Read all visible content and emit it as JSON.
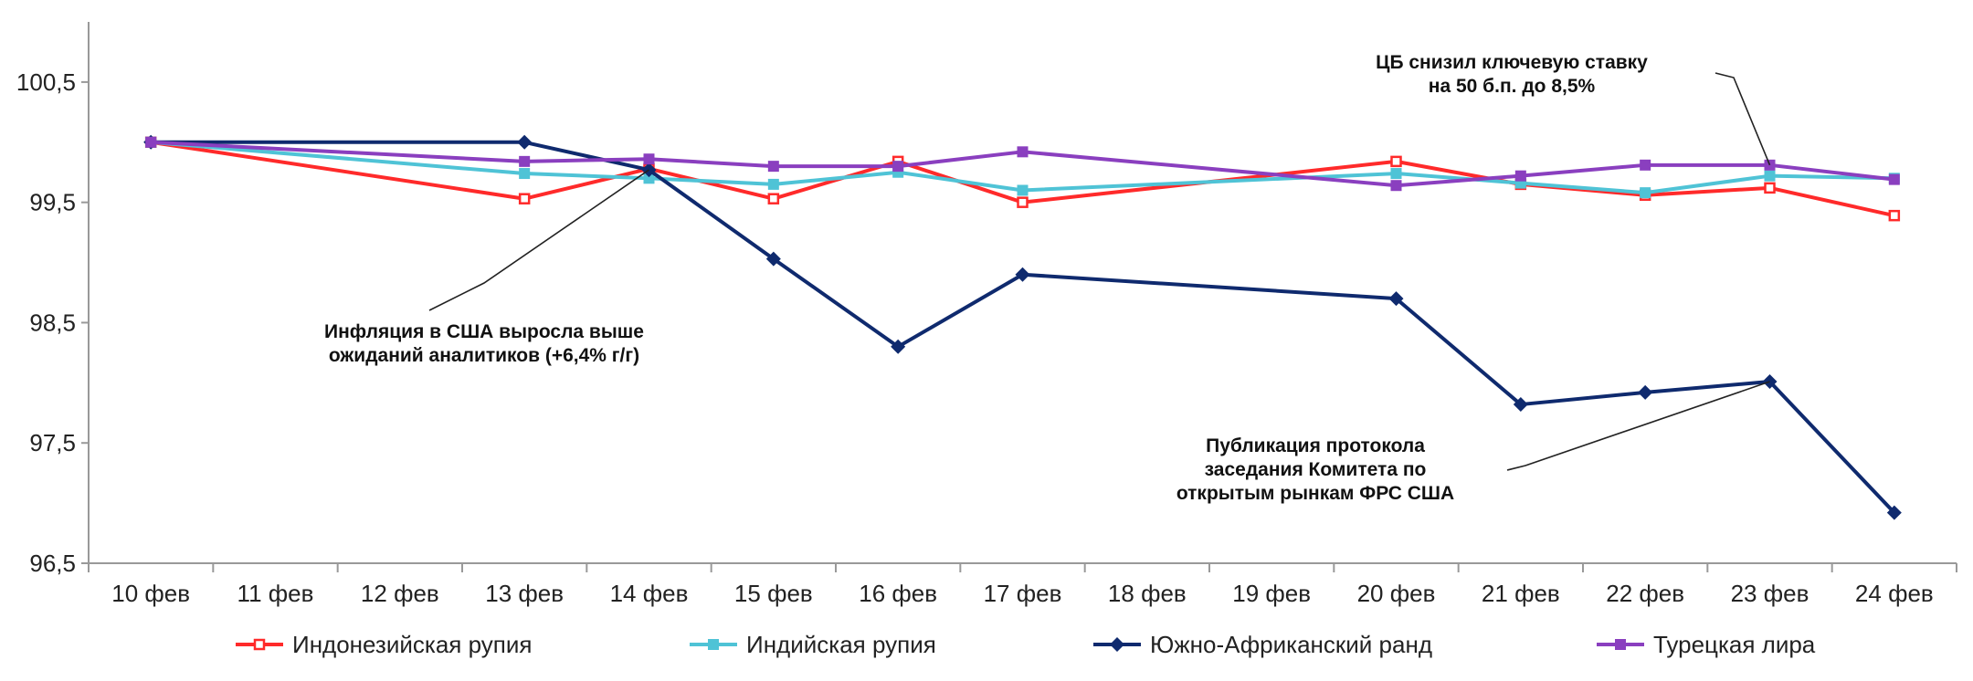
{
  "chart_data": {
    "type": "line",
    "title": "",
    "xlabel": "",
    "ylabel": "",
    "ylim": [
      96.5,
      101.0
    ],
    "yticks": [
      "96,5",
      "97,5",
      "98,5",
      "99,5",
      "100,5"
    ],
    "ytick_values": [
      96.5,
      97.5,
      98.5,
      99.5,
      100.5
    ],
    "categories": [
      "10 фев",
      "11 фев",
      "12 фев",
      "13 фев",
      "14 фев",
      "15 фев",
      "16 фев",
      "17 фев",
      "18 фев",
      "19 фев",
      "20 фев",
      "21 фев",
      "22 фев",
      "23 фев",
      "24 фев"
    ],
    "grid": false,
    "legend_position": "bottom",
    "series": [
      {
        "name": "Индонезийская рупия",
        "color": "#ff2a2a",
        "marker": "square-hollow",
        "points": [
          [
            0,
            100.0
          ],
          [
            3,
            99.53
          ],
          [
            4,
            99.78
          ],
          [
            5,
            99.53
          ],
          [
            6,
            99.84
          ],
          [
            7,
            99.5
          ],
          [
            10,
            99.84
          ],
          [
            11,
            99.65
          ],
          [
            12,
            99.56
          ],
          [
            13,
            99.62
          ],
          [
            14,
            99.39
          ]
        ]
      },
      {
        "name": "Индийская рупия",
        "color": "#4fc3d6",
        "marker": "square",
        "points": [
          [
            0,
            100.0
          ],
          [
            3,
            99.74
          ],
          [
            4,
            99.7
          ],
          [
            5,
            99.65
          ],
          [
            6,
            99.75
          ],
          [
            7,
            99.6
          ],
          [
            10,
            99.74
          ],
          [
            11,
            99.66
          ],
          [
            12,
            99.58
          ],
          [
            13,
            99.72
          ],
          [
            14,
            99.7
          ]
        ]
      },
      {
        "name": "Южно-Африканский ранд",
        "color": "#0f2a6e",
        "marker": "diamond",
        "points": [
          [
            0,
            100.0
          ],
          [
            3,
            100.0
          ],
          [
            4,
            99.77
          ],
          [
            5,
            99.03
          ],
          [
            6,
            98.3
          ],
          [
            7,
            98.9
          ],
          [
            10,
            98.7
          ],
          [
            11,
            97.82
          ],
          [
            12,
            97.92
          ],
          [
            13,
            98.01
          ],
          [
            14,
            96.92
          ]
        ]
      },
      {
        "name": "Турецкая лира",
        "color": "#8a3fbf",
        "marker": "square",
        "points": [
          [
            0,
            100.0
          ],
          [
            3,
            99.84
          ],
          [
            4,
            99.86
          ],
          [
            5,
            99.8
          ],
          [
            6,
            99.8
          ],
          [
            7,
            99.92
          ],
          [
            10,
            99.64
          ],
          [
            11,
            99.72
          ],
          [
            12,
            99.81
          ],
          [
            13,
            99.81
          ],
          [
            14,
            99.69
          ]
        ]
      }
    ],
    "annotations": [
      {
        "lines": [
          "ЦБ снизил ключевую ставку",
          "на 50 б.п. до 8,5%"
        ],
        "target": [
          13,
          99.81
        ]
      },
      {
        "lines": [
          "Инфляция в США выросла выше",
          "ожиданий аналитиков (+6,4% г/г)"
        ],
        "target": [
          4,
          99.77
        ]
      },
      {
        "lines": [
          "Публикация протокола",
          "заседания Комитета по",
          "открытым рынкам ФРС США"
        ],
        "target": [
          13,
          98.01
        ]
      }
    ]
  }
}
